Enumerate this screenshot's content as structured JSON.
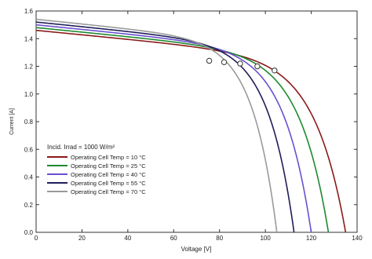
{
  "chart_data": {
    "type": "line",
    "title": "",
    "xlabel": "Voltage [V]",
    "ylabel": "Current [A]",
    "xlim": [
      0,
      140
    ],
    "ylim": [
      0,
      1.6
    ],
    "x_ticks": [
      "0",
      "20",
      "40",
      "60",
      "80",
      "100",
      "120",
      "140"
    ],
    "y_ticks": [
      "0.0",
      "0.2",
      "0.4",
      "0.6",
      "0.8",
      "1.0",
      "1.2",
      "1.4",
      "1.6"
    ],
    "grid": false,
    "legend_title": "Incid. Irrad = 1000 W/m²",
    "legend_position": "bottom-left",
    "series": [
      {
        "name": "Operating Cell Temp =  10 °C",
        "color": "#8b1a1a",
        "isc": 1.46,
        "voc": 135,
        "mpp": [
          104,
          1.17
        ]
      },
      {
        "name": "Operating Cell Temp =  25 °C",
        "color": "#1e8a2e",
        "isc": 1.48,
        "voc": 127.5,
        "mpp": [
          96.5,
          1.2
        ]
      },
      {
        "name": "Operating Cell Temp =  40 °C",
        "color": "#6a50d0",
        "isc": 1.5,
        "voc": 120,
        "mpp": [
          89,
          1.22
        ]
      },
      {
        "name": "Operating Cell Temp =  55 °C",
        "color": "#1e1e5a",
        "isc": 1.52,
        "voc": 112.5,
        "mpp": [
          82,
          1.23
        ]
      },
      {
        "name": "Operating Cell Temp =  70 °C",
        "color": "#9a9a9a",
        "isc": 1.54,
        "voc": 105,
        "mpp": [
          75.5,
          1.24
        ]
      }
    ]
  }
}
